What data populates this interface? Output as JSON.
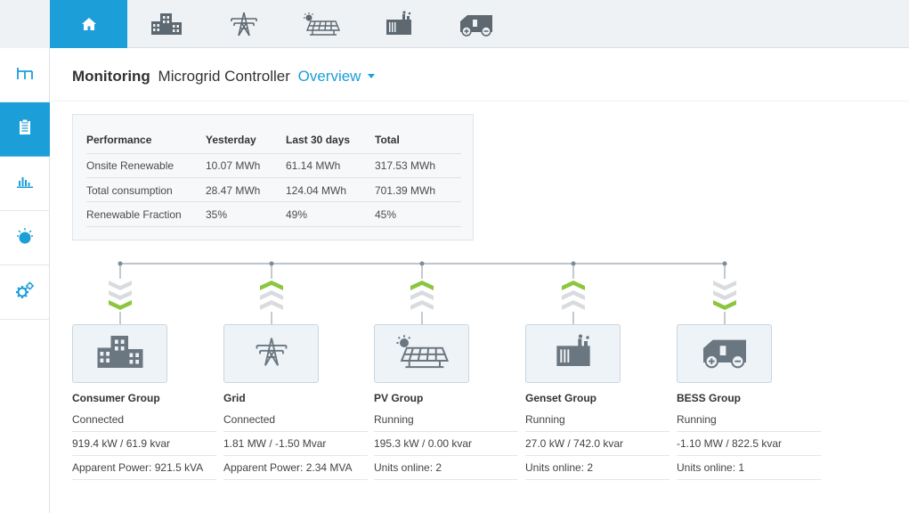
{
  "top_nav": {
    "tabs": [
      {
        "icon": "home-icon",
        "active": true
      },
      {
        "icon": "buildings-icon",
        "active": false
      },
      {
        "icon": "power-tower-icon",
        "active": false
      },
      {
        "icon": "solar-panel-icon",
        "active": false
      },
      {
        "icon": "genset-icon",
        "active": false
      },
      {
        "icon": "battery-container-icon",
        "active": false
      }
    ]
  },
  "side_nav": {
    "items": [
      {
        "icon": "topology-icon",
        "active": false
      },
      {
        "icon": "clipboard-icon",
        "active": true
      },
      {
        "icon": "bar-chart-icon",
        "active": false
      },
      {
        "icon": "alarm-icon",
        "active": false
      },
      {
        "icon": "settings-gears-icon",
        "active": false
      }
    ]
  },
  "header": {
    "section": "Monitoring",
    "subtitle": "Microgrid Controller",
    "view": "Overview"
  },
  "performance": {
    "columns": [
      "Performance",
      "Yesterday",
      "Last 30 days",
      "Total"
    ],
    "rows": [
      [
        "Onsite Renewable",
        "10.07 MWh",
        "61.14 MWh",
        "317.53 MWh"
      ],
      [
        "Total consumption",
        "28.47 MWh",
        "124.04 MWh",
        "701.39 MWh"
      ],
      [
        "Renewable Fraction",
        "35%",
        "49%",
        "45%"
      ]
    ]
  },
  "groups": [
    {
      "name": "Consumer Group",
      "status": "Connected",
      "power": "919.4 kW / 61.9 kvar",
      "detail": "Apparent Power: 921.5 kVA",
      "icon": "buildings-icon",
      "flow": "down"
    },
    {
      "name": "Grid",
      "status": "Connected",
      "power": "1.81 MW / -1.50 Mvar",
      "detail": "Apparent Power: 2.34 MVA",
      "icon": "power-tower-icon",
      "flow": "up"
    },
    {
      "name": "PV Group",
      "status": "Running",
      "power": "195.3 kW / 0.00 kvar",
      "detail": "Units online: 2",
      "icon": "solar-panel-icon",
      "flow": "up"
    },
    {
      "name": "Genset Group",
      "status": "Running",
      "power": "27.0 kW / 742.0 kvar",
      "detail": "Units online: 2",
      "icon": "genset-icon",
      "flow": "up"
    },
    {
      "name": "BESS Group",
      "status": "Running",
      "power": "-1.10 MW / 822.5 kvar",
      "detail": "Units online: 1",
      "icon": "battery-container-icon",
      "flow": "down"
    }
  ],
  "colors": {
    "accent": "#1c9ed9",
    "flow_active": "#8cc63f",
    "flow_inactive": "#d9dcdf",
    "icon_gray": "#6b7780"
  }
}
